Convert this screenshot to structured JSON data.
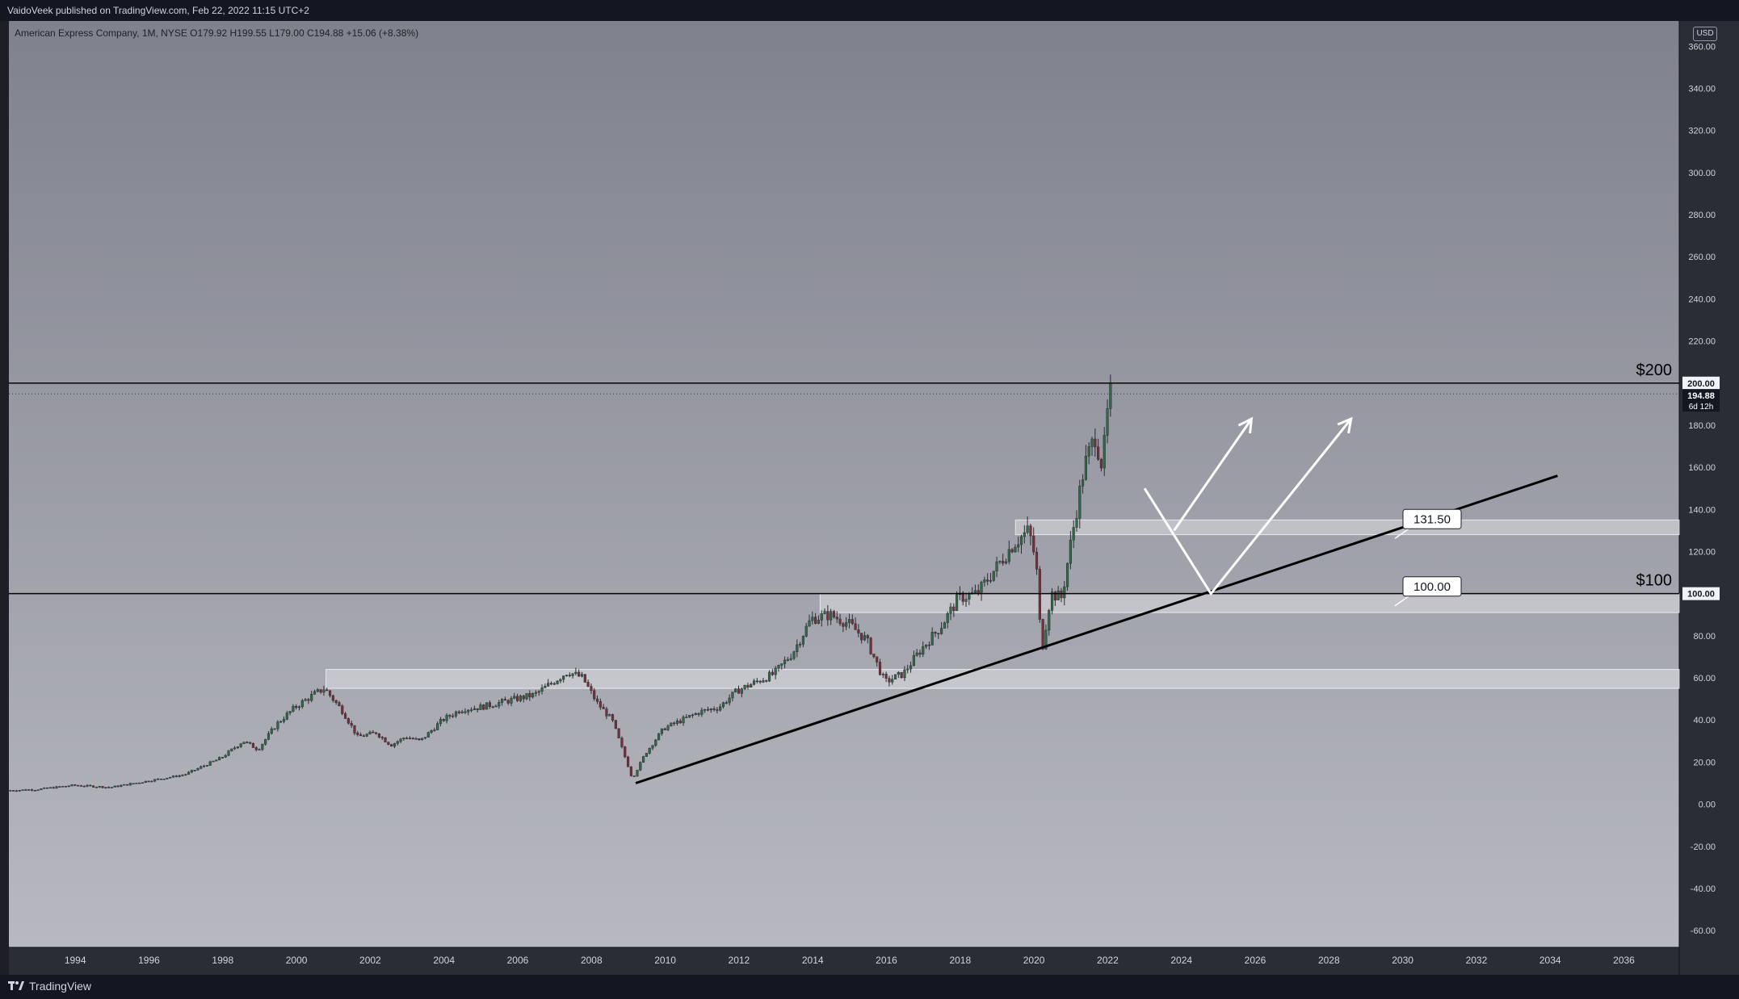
{
  "header": {
    "publisher_line": "VaidoVeek published on TradingView.com, Feb 22, 2022 11:15 UTC+2"
  },
  "footer": {
    "brand": "TradingView"
  },
  "colors": {
    "bg_top": "#7f818d",
    "bg_bottom": "#b8b9c0",
    "frame": "#1e1f24",
    "up_candle": "#2f6b45",
    "down_candle": "#7a2f38",
    "line": "#000000",
    "arrow": "#ffffff"
  },
  "chart_data": {
    "type": "candlestick",
    "symbol_line": "American Express Company, 1M, NYSE  O179.92  H199.55  L179.00  C194.88  +15.06 (+8.38%)",
    "currency": "USD",
    "x_ticks": [
      "1994",
      "1996",
      "1998",
      "2000",
      "2002",
      "2004",
      "2006",
      "2008",
      "2010",
      "2012",
      "2014",
      "2016",
      "2018",
      "2020",
      "2022",
      "2024",
      "2026",
      "2028",
      "2030",
      "2032",
      "2034",
      "2036"
    ],
    "y_ticks": [
      "360.00",
      "340.00",
      "320.00",
      "300.00",
      "280.00",
      "260.00",
      "240.00",
      "220.00",
      "200.00",
      "180.00",
      "160.00",
      "140.00",
      "120.00",
      "100.00",
      "80.00",
      "60.00",
      "40.00",
      "20.00",
      "0.00",
      "-20.00",
      "-40.00",
      "-60.00"
    ],
    "y_range": [
      -68,
      372
    ],
    "x_range": [
      1992.2,
      2037.5
    ],
    "price_path": [
      [
        1992.2,
        6.5
      ],
      [
        1993.0,
        7
      ],
      [
        1994.0,
        9
      ],
      [
        1995.0,
        8
      ],
      [
        1996.0,
        11
      ],
      [
        1997.0,
        14
      ],
      [
        1998.0,
        22
      ],
      [
        1998.6,
        30
      ],
      [
        1999.0,
        26
      ],
      [
        1999.5,
        38
      ],
      [
        2000.0,
        46
      ],
      [
        2000.5,
        52
      ],
      [
        2000.8,
        55
      ],
      [
        2001.3,
        44
      ],
      [
        2001.7,
        32
      ],
      [
        2002.2,
        34
      ],
      [
        2002.6,
        28
      ],
      [
        2003.0,
        32
      ],
      [
        2003.4,
        30
      ],
      [
        2004.0,
        40
      ],
      [
        2004.5,
        45
      ],
      [
        2005.0,
        46
      ],
      [
        2005.5,
        48
      ],
      [
        2006.0,
        50
      ],
      [
        2006.5,
        52
      ],
      [
        2007.0,
        58
      ],
      [
        2007.4,
        63
      ],
      [
        2007.8,
        60
      ],
      [
        2008.2,
        48
      ],
      [
        2008.6,
        40
      ],
      [
        2009.0,
        20
      ],
      [
        2009.15,
        12
      ],
      [
        2009.5,
        24
      ],
      [
        2010.0,
        36
      ],
      [
        2010.5,
        40
      ],
      [
        2011.0,
        44
      ],
      [
        2011.5,
        46
      ],
      [
        2012.0,
        54
      ],
      [
        2012.5,
        58
      ],
      [
        2013.0,
        62
      ],
      [
        2013.5,
        72
      ],
      [
        2014.0,
        88
      ],
      [
        2014.5,
        90
      ],
      [
        2015.0,
        86
      ],
      [
        2015.5,
        78
      ],
      [
        2016.0,
        58
      ],
      [
        2016.5,
        62
      ],
      [
        2017.0,
        74
      ],
      [
        2017.5,
        84
      ],
      [
        2018.0,
        98
      ],
      [
        2018.5,
        100
      ],
      [
        2019.0,
        112
      ],
      [
        2019.5,
        124
      ],
      [
        2019.9,
        130
      ],
      [
        2020.1,
        115
      ],
      [
        2020.25,
        72
      ],
      [
        2020.5,
        100
      ],
      [
        2020.8,
        98
      ],
      [
        2021.0,
        120
      ],
      [
        2021.4,
        160
      ],
      [
        2021.7,
        175
      ],
      [
        2021.9,
        160
      ],
      [
        2022.0,
        180
      ],
      [
        2022.1,
        195
      ]
    ],
    "horizontal_lines": [
      {
        "price": 200,
        "label": "$200",
        "axis_label": "200.00"
      },
      {
        "price": 100,
        "label": "$100",
        "axis_label": "100.00"
      }
    ],
    "last_price": {
      "value": "194.88",
      "countdown": "6d 12h",
      "price": 194.88
    },
    "zones": [
      {
        "x_start": 2019.5,
        "x_end": 2037.5,
        "y_low": 128,
        "y_high": 135,
        "label": "131.50"
      },
      {
        "x_start": 2014.2,
        "x_end": 2037.5,
        "y_low": 91,
        "y_high": 100,
        "label": "100.00"
      },
      {
        "x_start": 2000.8,
        "x_end": 2037.5,
        "y_low": 55,
        "y_high": 64
      }
    ],
    "trendline": {
      "from": [
        2009.2,
        10
      ],
      "to": [
        2034.2,
        156
      ]
    },
    "arrows": [
      {
        "points": [
          [
            2023.0,
            150
          ],
          [
            2024.8,
            100
          ],
          [
            2028.6,
            183
          ]
        ]
      },
      {
        "points": [
          [
            2023.8,
            130
          ],
          [
            2025.9,
            183
          ]
        ]
      }
    ]
  }
}
